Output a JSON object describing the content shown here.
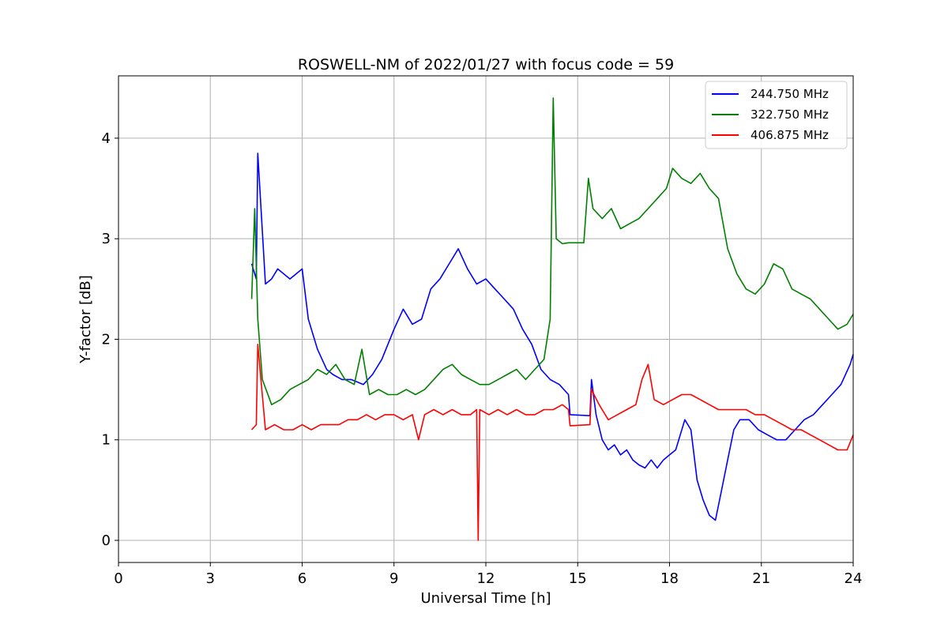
{
  "chart_data": {
    "type": "line",
    "title": "ROSWELL-NM of 2022/01/27 with focus code = 59",
    "xlabel": "Universal Time [h]",
    "ylabel": "Y-factor [dB]",
    "xlim": [
      0,
      24
    ],
    "ylim": [
      -0.22,
      4.62
    ],
    "xticks": [
      "0",
      "3",
      "6",
      "9",
      "12",
      "15",
      "18",
      "21",
      "24"
    ],
    "yticks": [
      "0",
      "1",
      "2",
      "3",
      "4"
    ],
    "grid": true,
    "legend_position": "top-right",
    "series": [
      {
        "name": "244.750 MHz",
        "color": "#0000ff",
        "x": [
          4.35,
          4.5,
          4.55,
          4.8,
          5.0,
          5.2,
          5.6,
          6.0,
          6.2,
          6.5,
          6.8,
          7.0,
          7.3,
          7.6,
          8.0,
          8.3,
          8.6,
          9.0,
          9.3,
          9.6,
          9.9,
          10.2,
          10.5,
          10.8,
          11.1,
          11.4,
          11.7,
          12.0,
          12.3,
          12.6,
          12.9,
          13.2,
          13.5,
          13.8,
          14.1,
          14.4,
          14.7,
          14.75,
          15.4,
          15.45,
          15.6,
          15.8,
          16.0,
          16.2,
          16.4,
          16.6,
          16.8,
          17.0,
          17.2,
          17.4,
          17.6,
          17.8,
          18.0,
          18.2,
          18.5,
          18.7,
          18.9,
          19.1,
          19.3,
          19.5,
          19.7,
          19.9,
          20.1,
          20.3,
          20.6,
          20.9,
          21.2,
          21.5,
          21.8,
          22.1,
          22.4,
          22.7,
          23.0,
          23.3,
          23.6,
          23.9,
          24.0
        ],
        "values": [
          2.75,
          2.6,
          3.85,
          2.55,
          2.6,
          2.7,
          2.6,
          2.7,
          2.2,
          1.9,
          1.7,
          1.65,
          1.6,
          1.6,
          1.55,
          1.65,
          1.8,
          2.1,
          2.3,
          2.15,
          2.2,
          2.5,
          2.6,
          2.75,
          2.9,
          2.7,
          2.55,
          2.6,
          2.5,
          2.4,
          2.3,
          2.1,
          1.95,
          1.7,
          1.6,
          1.55,
          1.45,
          1.25,
          1.24,
          1.6,
          1.25,
          1.0,
          0.9,
          0.95,
          0.85,
          0.9,
          0.8,
          0.75,
          0.72,
          0.8,
          0.72,
          0.8,
          0.85,
          0.9,
          1.2,
          1.1,
          0.6,
          0.4,
          0.25,
          0.2,
          0.5,
          0.8,
          1.1,
          1.2,
          1.2,
          1.1,
          1.05,
          1.0,
          1.0,
          1.1,
          1.2,
          1.25,
          1.35,
          1.45,
          1.55,
          1.75,
          1.85
        ]
      },
      {
        "name": "322.750 MHz",
        "color": "#008000",
        "x": [
          4.35,
          4.45,
          4.55,
          4.7,
          5.0,
          5.3,
          5.6,
          5.9,
          6.2,
          6.5,
          6.8,
          7.1,
          7.4,
          7.7,
          7.95,
          8.2,
          8.5,
          8.8,
          9.1,
          9.4,
          9.7,
          10.0,
          10.3,
          10.6,
          10.9,
          11.2,
          11.5,
          11.8,
          12.1,
          12.4,
          12.7,
          13.0,
          13.3,
          13.6,
          13.9,
          14.1,
          14.2,
          14.3,
          14.5,
          14.7,
          15.0,
          15.2,
          15.35,
          15.5,
          15.8,
          16.1,
          16.4,
          16.7,
          17.0,
          17.3,
          17.6,
          17.9,
          18.1,
          18.4,
          18.7,
          19.0,
          19.3,
          19.6,
          19.9,
          20.2,
          20.5,
          20.8,
          21.1,
          21.4,
          21.7,
          22.0,
          22.3,
          22.6,
          22.9,
          23.2,
          23.5,
          23.8,
          24.0
        ],
        "values": [
          2.4,
          3.3,
          2.2,
          1.6,
          1.35,
          1.4,
          1.5,
          1.55,
          1.6,
          1.7,
          1.65,
          1.75,
          1.6,
          1.55,
          1.9,
          1.45,
          1.5,
          1.45,
          1.45,
          1.5,
          1.45,
          1.5,
          1.6,
          1.7,
          1.75,
          1.65,
          1.6,
          1.55,
          1.55,
          1.6,
          1.65,
          1.7,
          1.6,
          1.7,
          1.8,
          2.2,
          4.4,
          3.0,
          2.95,
          2.96,
          2.96,
          2.96,
          3.6,
          3.3,
          3.2,
          3.3,
          3.1,
          3.15,
          3.2,
          3.3,
          3.4,
          3.5,
          3.7,
          3.6,
          3.55,
          3.65,
          3.5,
          3.4,
          2.9,
          2.65,
          2.5,
          2.45,
          2.55,
          2.75,
          2.7,
          2.5,
          2.45,
          2.4,
          2.3,
          2.2,
          2.1,
          2.15,
          2.25
        ]
      },
      {
        "name": "406.875 MHz",
        "color": "#ff0000",
        "x": [
          4.35,
          4.5,
          4.55,
          4.8,
          5.1,
          5.4,
          5.7,
          6.0,
          6.3,
          6.6,
          6.9,
          7.2,
          7.5,
          7.8,
          8.1,
          8.4,
          8.7,
          9.0,
          9.3,
          9.6,
          9.8,
          10.0,
          10.3,
          10.6,
          10.9,
          11.2,
          11.5,
          11.7,
          11.75,
          11.8,
          12.1,
          12.4,
          12.7,
          13.0,
          13.3,
          13.6,
          13.9,
          14.2,
          14.5,
          14.7,
          14.75,
          15.4,
          15.45,
          15.7,
          16.0,
          16.3,
          16.6,
          16.9,
          17.1,
          17.3,
          17.5,
          17.8,
          18.1,
          18.4,
          18.7,
          19.0,
          19.3,
          19.6,
          19.9,
          20.2,
          20.5,
          20.8,
          21.1,
          21.4,
          21.7,
          22.0,
          22.3,
          22.6,
          22.9,
          23.2,
          23.5,
          23.8,
          24.0
        ],
        "values": [
          1.1,
          1.15,
          1.95,
          1.1,
          1.15,
          1.1,
          1.1,
          1.15,
          1.1,
          1.15,
          1.15,
          1.15,
          1.2,
          1.2,
          1.25,
          1.2,
          1.25,
          1.25,
          1.2,
          1.25,
          1.0,
          1.25,
          1.3,
          1.25,
          1.3,
          1.25,
          1.25,
          1.3,
          0.0,
          1.3,
          1.25,
          1.3,
          1.25,
          1.3,
          1.25,
          1.25,
          1.3,
          1.3,
          1.35,
          1.3,
          1.14,
          1.15,
          1.5,
          1.35,
          1.2,
          1.25,
          1.3,
          1.35,
          1.6,
          1.75,
          1.4,
          1.35,
          1.4,
          1.45,
          1.45,
          1.4,
          1.35,
          1.3,
          1.3,
          1.3,
          1.3,
          1.25,
          1.25,
          1.2,
          1.15,
          1.1,
          1.1,
          1.05,
          1.0,
          0.95,
          0.9,
          0.9,
          1.05
        ]
      }
    ]
  }
}
